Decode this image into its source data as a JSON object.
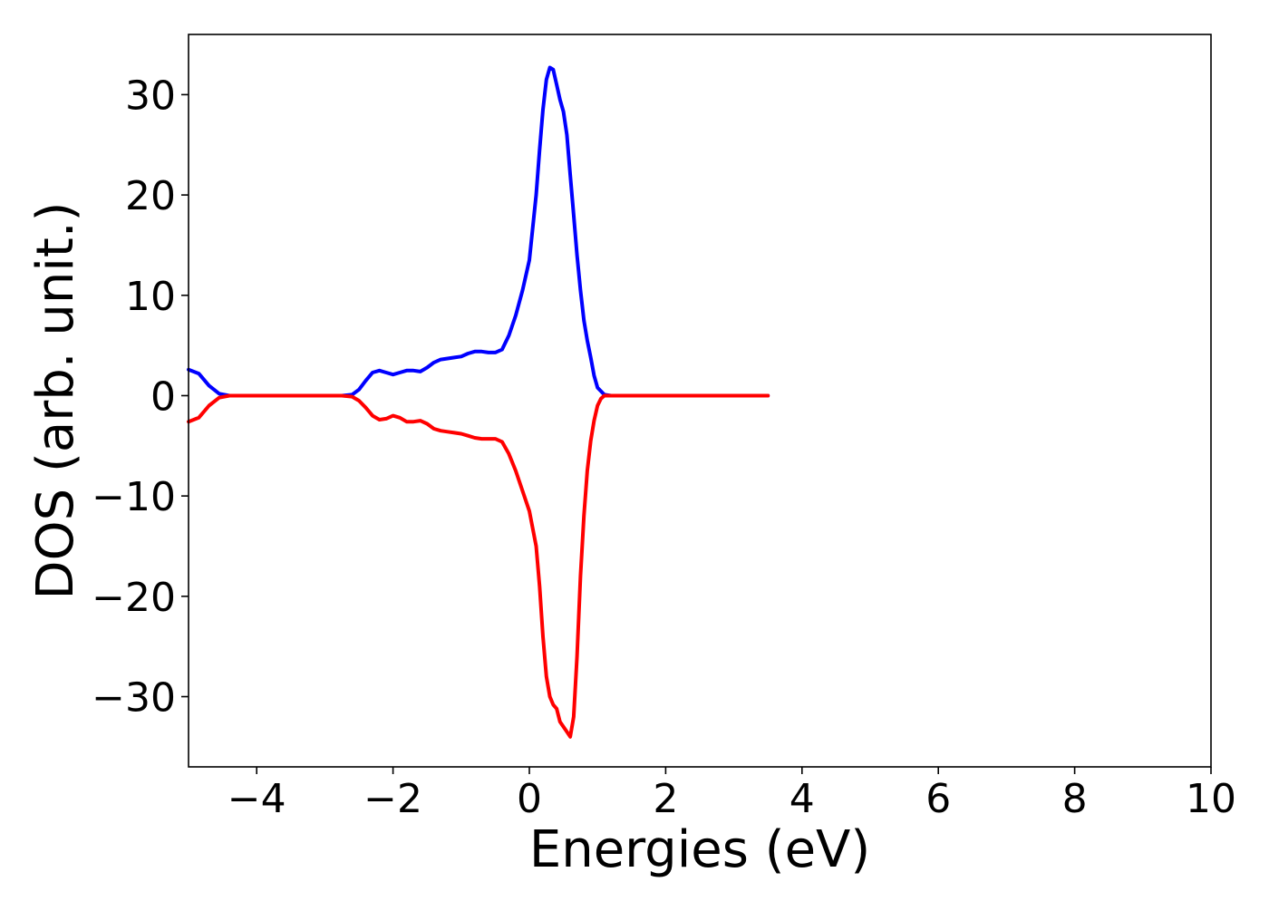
{
  "chart_data": {
    "type": "line",
    "title": "",
    "xlabel": "Energies (eV)",
    "ylabel": "DOS (arb. unit.)",
    "xlim": [
      -5,
      10
    ],
    "ylim": [
      -37,
      36
    ],
    "xticks": [
      -4,
      -2,
      0,
      2,
      4,
      6,
      8,
      10
    ],
    "xtick_labels": [
      "−4",
      "−2",
      "0",
      "2",
      "4",
      "6",
      "8",
      "10"
    ],
    "yticks": [
      -30,
      -20,
      -10,
      0,
      10,
      20,
      30
    ],
    "ytick_labels": [
      "−30",
      "−20",
      "−10",
      "0",
      "10",
      "20",
      "30"
    ],
    "grid": false,
    "legend": false,
    "series": [
      {
        "color": "#0000ff",
        "x": [
          -5.0,
          -4.85,
          -4.7,
          -4.55,
          -4.4,
          -4.2,
          -4.0,
          -3.5,
          -3.0,
          -2.75,
          -2.6,
          -2.5,
          -2.4,
          -2.3,
          -2.2,
          -2.1,
          -2.0,
          -1.9,
          -1.8,
          -1.7,
          -1.6,
          -1.5,
          -1.4,
          -1.3,
          -1.2,
          -1.1,
          -1.0,
          -0.9,
          -0.8,
          -0.7,
          -0.6,
          -0.5,
          -0.4,
          -0.3,
          -0.2,
          -0.1,
          0.0,
          0.1,
          0.15,
          0.2,
          0.25,
          0.3,
          0.35,
          0.4,
          0.45,
          0.5,
          0.55,
          0.6,
          0.65,
          0.7,
          0.75,
          0.8,
          0.85,
          0.9,
          0.95,
          1.0,
          1.1,
          1.2,
          1.3,
          1.4,
          1.5,
          1.6,
          1.7,
          1.8,
          2.0,
          2.5,
          3.0,
          3.5
        ],
        "y": [
          2.6,
          2.2,
          1.0,
          0.2,
          0.0,
          0.0,
          0.0,
          0.0,
          0.0,
          0.0,
          0.1,
          0.6,
          1.5,
          2.3,
          2.5,
          2.3,
          2.1,
          2.3,
          2.5,
          2.5,
          2.4,
          2.8,
          3.3,
          3.6,
          3.7,
          3.8,
          3.9,
          4.2,
          4.4,
          4.4,
          4.3,
          4.3,
          4.6,
          6.0,
          8.0,
          10.5,
          13.5,
          20.0,
          24.5,
          28.5,
          31.5,
          32.7,
          32.5,
          31.0,
          29.5,
          28.3,
          26.0,
          22.0,
          18.0,
          14.0,
          10.5,
          7.5,
          5.5,
          3.8,
          2.0,
          0.8,
          0.1,
          0.0,
          0.0,
          0.0,
          0.0,
          0.0,
          0.0,
          0.0,
          0.0,
          0.0,
          0.0,
          0.0
        ]
      },
      {
        "color": "#ff0000",
        "x": [
          -5.0,
          -4.85,
          -4.7,
          -4.55,
          -4.4,
          -4.2,
          -4.0,
          -3.5,
          -3.0,
          -2.75,
          -2.6,
          -2.5,
          -2.4,
          -2.3,
          -2.2,
          -2.1,
          -2.0,
          -1.9,
          -1.8,
          -1.7,
          -1.6,
          -1.5,
          -1.4,
          -1.3,
          -1.2,
          -1.1,
          -1.0,
          -0.9,
          -0.8,
          -0.7,
          -0.6,
          -0.5,
          -0.4,
          -0.3,
          -0.2,
          -0.1,
          0.0,
          0.1,
          0.15,
          0.2,
          0.25,
          0.3,
          0.35,
          0.4,
          0.45,
          0.5,
          0.55,
          0.6,
          0.65,
          0.7,
          0.75,
          0.8,
          0.85,
          0.9,
          0.95,
          1.0,
          1.05,
          1.1,
          1.15,
          1.2,
          1.3,
          1.4,
          1.5,
          1.6,
          1.7,
          1.8,
          2.0,
          2.5,
          3.0,
          3.5
        ],
        "y": [
          -2.6,
          -2.2,
          -1.0,
          -0.2,
          0.0,
          0.0,
          0.0,
          0.0,
          0.0,
          0.0,
          -0.1,
          -0.5,
          -1.2,
          -2.0,
          -2.4,
          -2.3,
          -2.0,
          -2.2,
          -2.6,
          -2.6,
          -2.5,
          -2.8,
          -3.3,
          -3.5,
          -3.6,
          -3.7,
          -3.8,
          -4.0,
          -4.2,
          -4.3,
          -4.3,
          -4.3,
          -4.6,
          -5.8,
          -7.5,
          -9.5,
          -11.5,
          -15.0,
          -19.0,
          -24.0,
          -28.0,
          -30.0,
          -30.8,
          -31.2,
          -32.5,
          -33.0,
          -33.5,
          -34.0,
          -32.0,
          -26.0,
          -18.0,
          -12.0,
          -7.5,
          -4.5,
          -2.5,
          -1.0,
          -0.3,
          0.0,
          0.0,
          0.0,
          0.0,
          0.0,
          0.0,
          0.0,
          0.0,
          0.0,
          0.0,
          0.0,
          0.0,
          0.0
        ]
      }
    ]
  }
}
